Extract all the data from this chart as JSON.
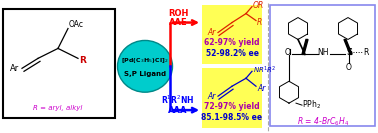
{
  "bg_color": "#ffffff",
  "catalyst_text1": "[Pd(C$_3$H$_5$)Cl]$_2$",
  "catalyst_text2": "S,P Ligand",
  "top_arrow_color": "#ff0000",
  "bottom_arrow_color": "#0000ff",
  "top_label1": "ROH",
  "top_label2": "AAE",
  "bottom_label1": "R$^1$R$^2$NH",
  "bottom_label2": "AAA",
  "top_yield": "62-97% yield",
  "top_ee": "52-98.2% ee",
  "bottom_yield": "72-97% yield",
  "bottom_ee": "85.1-98.5% ee",
  "right_label": "R = 4-BrC$_6$H$_4$",
  "substrate_note": "R = aryl, alkyl"
}
